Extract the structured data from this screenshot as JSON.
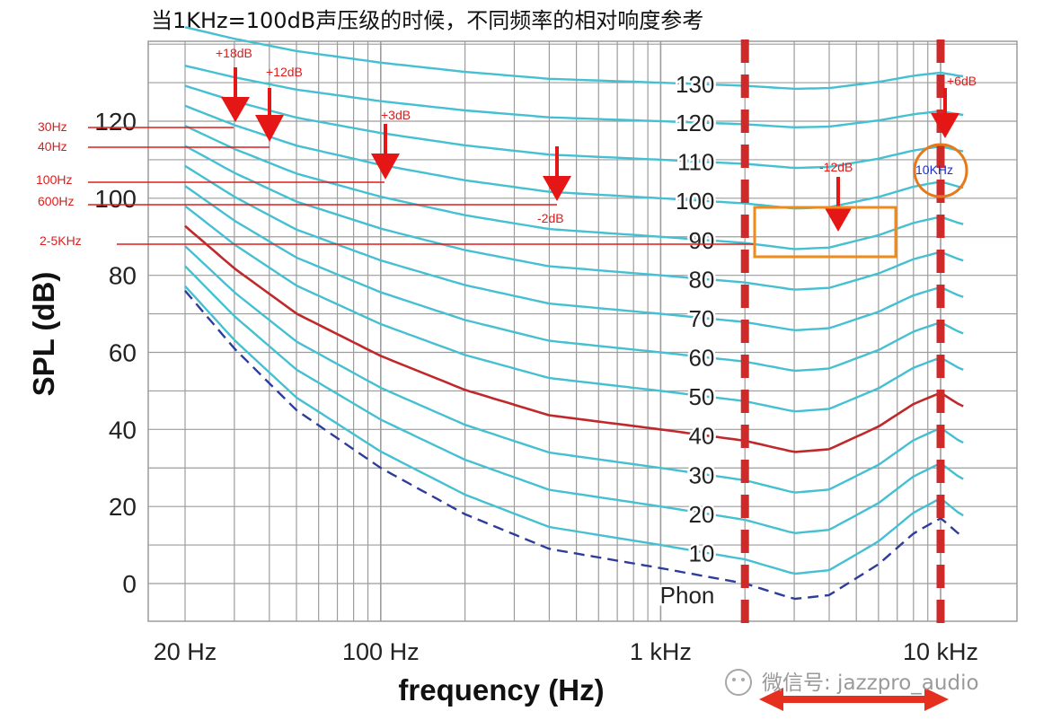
{
  "title": "当1KHz=100dB声压级的时候，不同频率的相对响度参考",
  "colors": {
    "grid": "#9c9c9c",
    "contour": "#45c0d2",
    "highlight": "#c0292b",
    "threshold": "#2e3d9a",
    "annotation": "#e01b1b",
    "dashed_marker": "#cf2a2a",
    "orange": "#f08a1a",
    "blue_text": "#1a2fd6"
  },
  "chart_data": {
    "type": "line",
    "xlabel": "frequency (Hz)",
    "ylabel": "SPL (dB)",
    "x_scale": "log",
    "xlim": [
      20,
      12500
    ],
    "ylim": [
      -10,
      150
    ],
    "grid": true,
    "x_tick_labels": [
      {
        "value": 20,
        "label": "20 Hz"
      },
      {
        "value": 100,
        "label": "100 Hz"
      },
      {
        "value": 1000,
        "label": "1 kHz"
      },
      {
        "value": 10000,
        "label": "10 kHz"
      }
    ],
    "y_tick_labels": [
      0,
      20,
      40,
      60,
      80,
      100,
      120
    ],
    "phon_levels": [
      130,
      120,
      110,
      100,
      90,
      80,
      70,
      60,
      50,
      40,
      30,
      20,
      10
    ],
    "phon_unit_label": "Phon",
    "highlight_phon": 40,
    "threshold_curve": {
      "style": "dashed",
      "points": [
        [
          20,
          76
        ],
        [
          30,
          61
        ],
        [
          50,
          45
        ],
        [
          100,
          30
        ],
        [
          200,
          18
        ],
        [
          400,
          9
        ],
        [
          1000,
          4
        ],
        [
          2000,
          0
        ],
        [
          3000,
          -4
        ],
        [
          4000,
          -3
        ],
        [
          6000,
          5
        ],
        [
          8000,
          13
        ],
        [
          10000,
          17
        ],
        [
          12000,
          12
        ],
        [
          12500,
          14
        ]
      ]
    },
    "reference_frequencies": [
      2000,
      10000
    ],
    "marked_range": [
      2000,
      10000
    ],
    "left_labels": [
      "30Hz",
      "40Hz",
      "100Hz",
      "600Hz",
      "2-5KHz"
    ],
    "annotations": [
      "+18dB",
      "+12dB",
      "+3dB",
      "-2dB",
      "-12dB",
      "+6dB"
    ],
    "circle_label": "10KHz"
  },
  "watermark": "微信号: jazzpro_audio"
}
